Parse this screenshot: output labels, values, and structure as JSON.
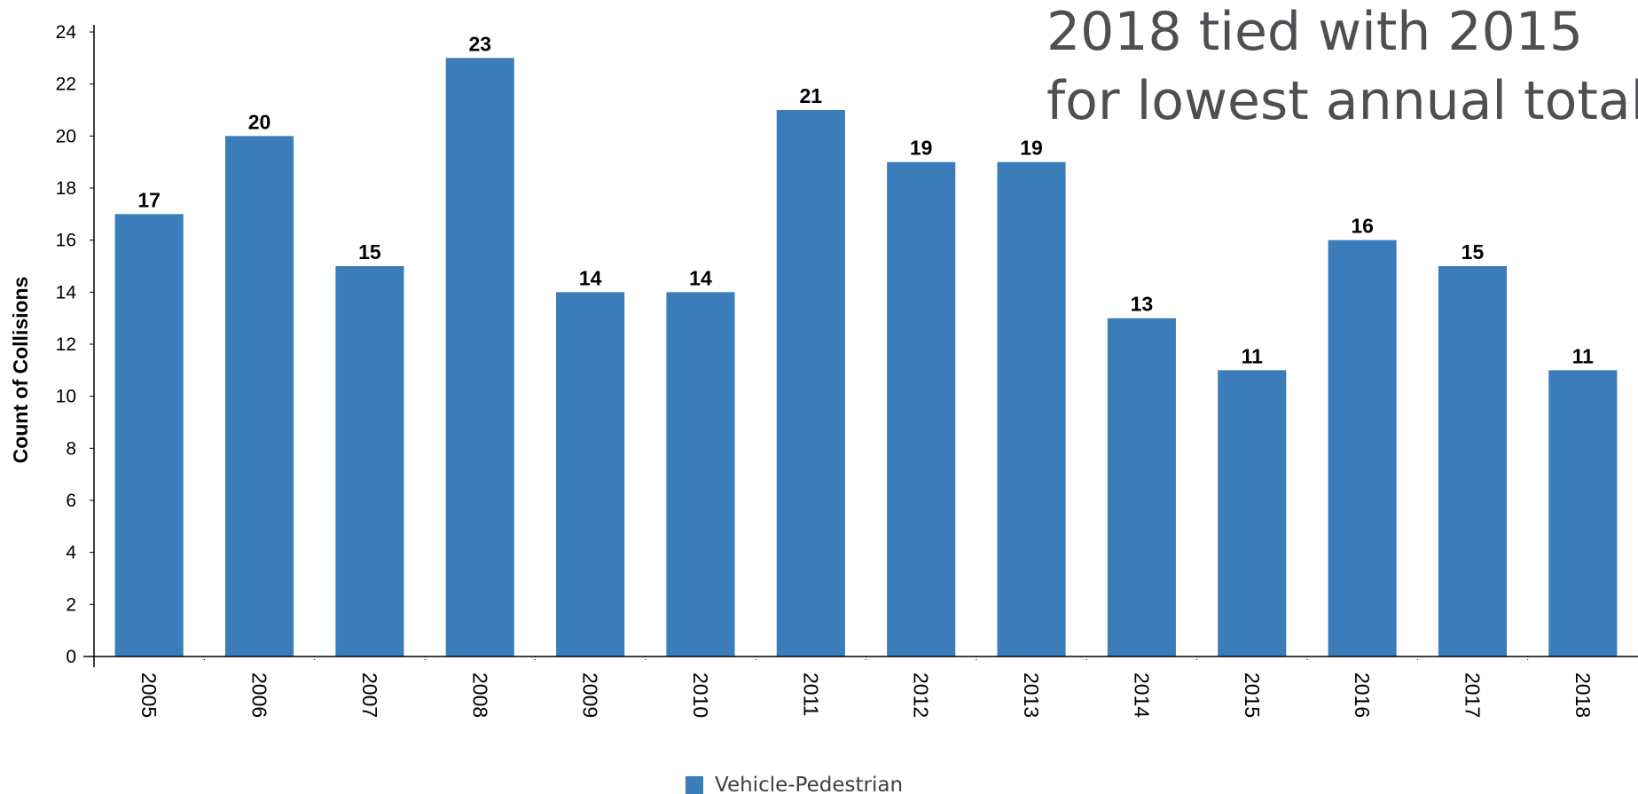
{
  "chart_data": {
    "type": "bar",
    "categories": [
      "2005",
      "2006",
      "2007",
      "2008",
      "2009",
      "2010",
      "2011",
      "2012",
      "2013",
      "2014",
      "2015",
      "2016",
      "2017",
      "2018"
    ],
    "series": [
      {
        "name": "Vehicle-Pedestrian",
        "values": [
          17,
          20,
          15,
          23,
          14,
          14,
          21,
          19,
          19,
          13,
          11,
          16,
          15,
          11
        ],
        "color": "#3a7dba"
      }
    ],
    "ylabel": "Count of Collisions",
    "xlabel": "",
    "ylim": [
      0,
      24
    ],
    "yticks": [
      0,
      2,
      4,
      6,
      8,
      10,
      12,
      14,
      16,
      18,
      20,
      22,
      24
    ],
    "annotation": [
      "2018 tied with 2015",
      "for lowest annual total"
    ],
    "grid": false,
    "legend_position": "bottom-center",
    "data_labels": true
  }
}
